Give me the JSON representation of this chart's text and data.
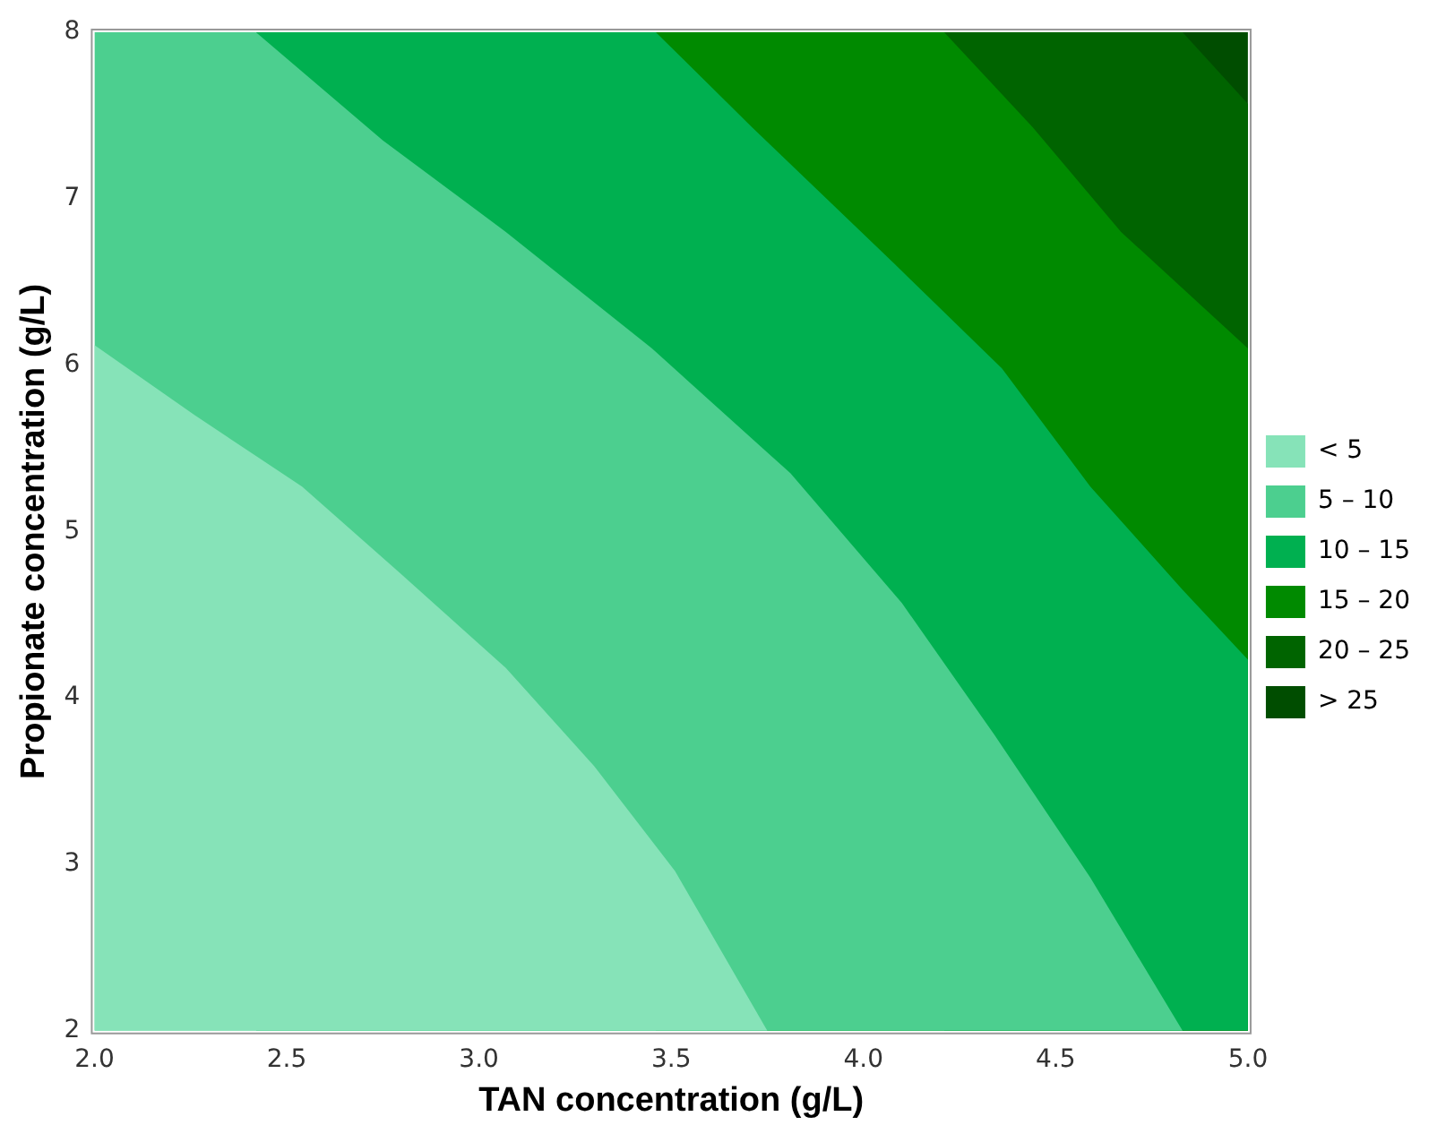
{
  "chart_data": {
    "type": "area",
    "xlabel": "TAN concentration (g/L)",
    "ylabel": "Propionate concentration (g/L)",
    "xlim": [
      2,
      5
    ],
    "ylim": [
      2,
      8
    ],
    "xticks": [
      {
        "value": 2,
        "label": "2.0"
      },
      {
        "value": 2.5,
        "label": "2.5"
      },
      {
        "value": 3,
        "label": "3.0"
      },
      {
        "value": 3.5,
        "label": "3.5"
      },
      {
        "value": 4,
        "label": "4.0"
      },
      {
        "value": 4.5,
        "label": "4.5"
      },
      {
        "value": 5,
        "label": "5.0"
      }
    ],
    "yticks": [
      2,
      3,
      4,
      5,
      6,
      7,
      8
    ],
    "legend": "right",
    "series": [
      {
        "name": "< 5",
        "color": "#86e3b8",
        "x": [
          2,
          2.26,
          2.54,
          2.79,
          3.07,
          3.3,
          3.51,
          3.75,
          5
        ],
        "values": [
          6.12,
          5.7,
          5.27,
          4.76,
          4.18,
          3.59,
          2.96,
          2,
          2
        ]
      },
      {
        "name": "5 – 10",
        "color": "#4ccf8f",
        "x": [
          2,
          2.42,
          2.75,
          3.07,
          3.45,
          3.81,
          4.1,
          4.34,
          4.59,
          4.83,
          5
        ],
        "values": [
          8,
          8,
          7.35,
          6.8,
          6.1,
          5.35,
          4.57,
          3.78,
          2.92,
          2,
          2
        ]
      },
      {
        "name": "10 – 15",
        "color": "#00b050",
        "x": [
          2.42,
          3.46,
          3.71,
          4.08,
          4.36,
          4.59,
          4.83,
          5
        ],
        "values": [
          8,
          8,
          7.43,
          6.61,
          5.98,
          5.27,
          4.65,
          4.23
        ]
      },
      {
        "name": "15 – 20",
        "color": "#008a00",
        "x": [
          3.46,
          4.21,
          4.44,
          4.67,
          5
        ],
        "values": [
          8,
          8,
          7.43,
          6.8,
          6.1
        ]
      },
      {
        "name": "20 – 25",
        "color": "#006400",
        "x": [
          4.21,
          4.83,
          5
        ],
        "values": [
          8,
          8,
          7.57
        ]
      },
      {
        "name": "> 25",
        "color": "#004d00",
        "x": [
          4.83,
          5
        ],
        "values": [
          8,
          8
        ]
      }
    ]
  }
}
